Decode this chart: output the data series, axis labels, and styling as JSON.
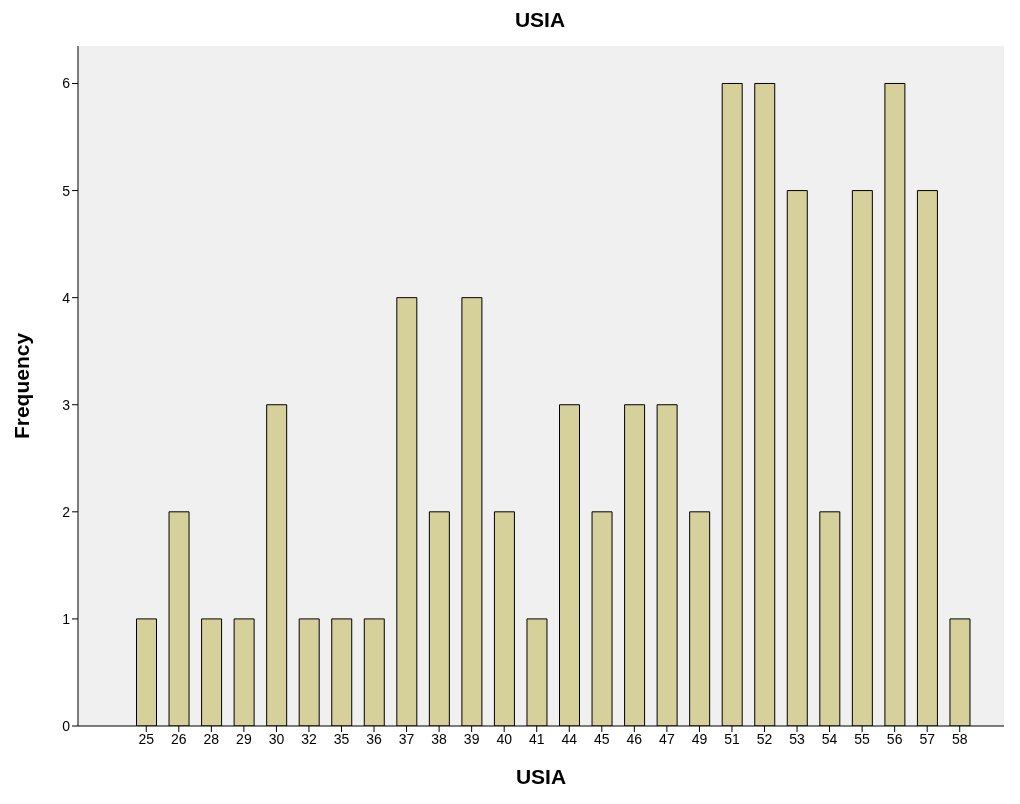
{
  "chart_data": {
    "type": "bar",
    "title": "USIA",
    "xlabel": "USIA",
    "ylabel": "Frequency",
    "categories": [
      "25",
      "26",
      "28",
      "29",
      "30",
      "32",
      "35",
      "36",
      "37",
      "38",
      "39",
      "40",
      "41",
      "44",
      "45",
      "46",
      "47",
      "49",
      "51",
      "52",
      "53",
      "54",
      "55",
      "56",
      "57",
      "58"
    ],
    "values": [
      1,
      2,
      1,
      1,
      3,
      1,
      1,
      1,
      4,
      2,
      4,
      2,
      1,
      3,
      2,
      3,
      3,
      2,
      6,
      6,
      5,
      2,
      5,
      6,
      5,
      1
    ],
    "color": "#d6d09a",
    "ylim": [
      0,
      6.35
    ],
    "yticks": [
      0,
      1,
      2,
      3,
      4,
      5,
      6
    ],
    "grid": false,
    "legend": false
  }
}
